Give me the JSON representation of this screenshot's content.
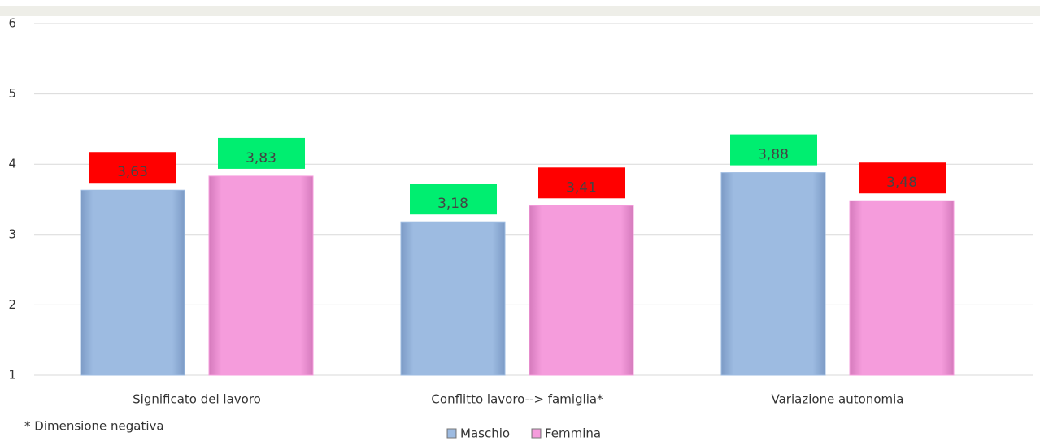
{
  "chart_data": {
    "type": "bar",
    "categories": [
      "Significato del lavoro",
      "Conflitto lavoro--> famiglia*",
      "Variazione autonomia"
    ],
    "series": [
      {
        "name": "Maschio",
        "color": "#9dbbe1",
        "values": [
          3.63,
          3.18,
          3.88
        ],
        "value_labels": [
          "3,63",
          "3,18",
          "3,88"
        ],
        "label_colors": [
          "#ff0000",
          "#00ee70",
          "#00ee70"
        ]
      },
      {
        "name": "Femmina",
        "color": "#f59cdc",
        "values": [
          3.83,
          3.41,
          3.48
        ],
        "value_labels": [
          "3,83",
          "3,41",
          "3,48"
        ],
        "label_colors": [
          "#00ee70",
          "#ff0000",
          "#ff0000"
        ]
      }
    ],
    "ylim": [
      1,
      6
    ],
    "yticks": [
      1,
      2,
      3,
      4,
      5,
      6
    ],
    "grid": true,
    "footnote": "* Dimensione negativa",
    "legend": "bottom"
  }
}
